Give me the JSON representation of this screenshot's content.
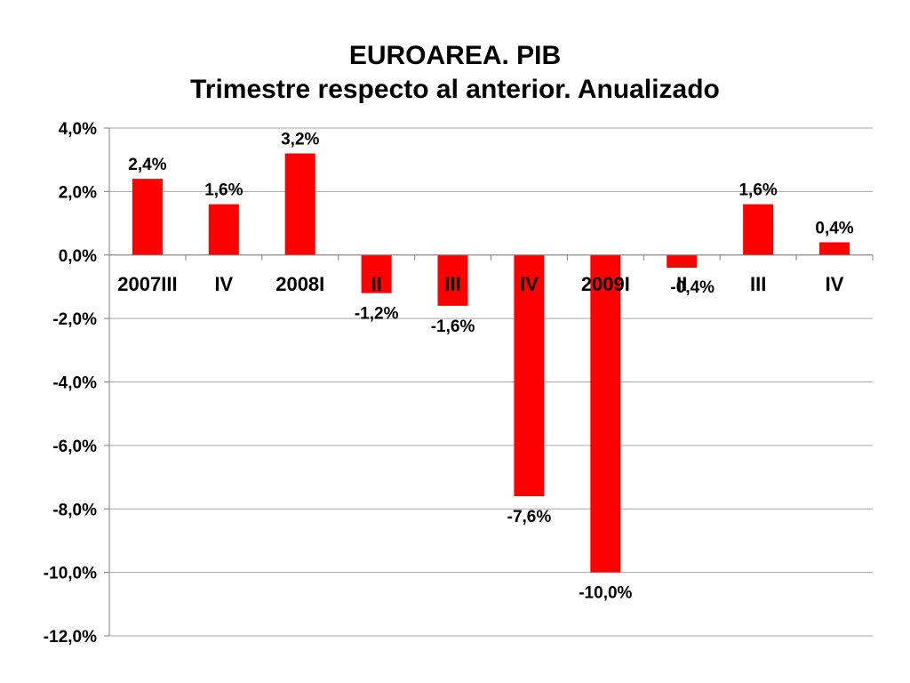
{
  "slide": {
    "title_line1": "EUROAREA. PIB",
    "title_line2": "Trimestre respecto al anterior. Anualizado"
  },
  "colors": {
    "bar": "#ff0000",
    "gridline": "#a6a6a6",
    "axis": "#808080",
    "background": "#ffffff"
  },
  "chart_data": {
    "type": "bar",
    "title": "EUROAREA. PIB\nTrimestre respecto al anterior. Anualizado",
    "xlabel": "",
    "ylabel": "",
    "categories": [
      "2007III",
      "IV",
      "2008I",
      "II",
      "III",
      "IV",
      "2009I",
      "II",
      "III",
      "IV"
    ],
    "series": [
      {
        "values": [
          2.4,
          1.6,
          3.2,
          -1.2,
          -1.6,
          -7.6,
          -10.0,
          -0.4,
          1.6,
          0.4
        ],
        "data_labels": [
          "2,4%",
          "1,6%",
          "3,2%",
          "-1,2%",
          "-1,6%",
          "-7,6%",
          "-10,0%",
          "-0,4%",
          "1,6%",
          "0,4%"
        ]
      }
    ],
    "ylim": [
      -12,
      4
    ],
    "yticks": [
      4,
      2,
      0,
      -2,
      -4,
      -6,
      -8,
      -10,
      -12
    ],
    "ytick_labels": [
      "4,0%",
      "2,0%",
      "0,0%",
      "-2,0%",
      "-4,0%",
      "-6,0%",
      "-8,0%",
      "-10,0%",
      "-12,0%"
    ],
    "grid": true,
    "legend": "none"
  }
}
